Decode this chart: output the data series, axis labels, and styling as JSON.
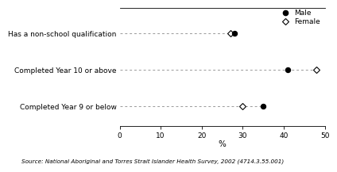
{
  "categories": [
    "Has a non-school qualification",
    "Completed Year 10 or above",
    "Completed Year 9 or below"
  ],
  "male_values": [
    28.0,
    41.0,
    35.0
  ],
  "female_values": [
    27.0,
    48.0,
    30.0
  ],
  "xlim": [
    0,
    50
  ],
  "xticks": [
    0,
    10,
    20,
    30,
    40,
    50
  ],
  "xlabel": "%",
  "source": "Source: National Aboriginal and Torres Strait Islander Health Survey, 2002 (4714.3.55.001)",
  "male_color": "#000000",
  "female_color": "#000000",
  "dashed_color": "#999999",
  "background_color": "#ffffff",
  "legend_male": "Male",
  "legend_female": "Female",
  "marker_size": 4.5
}
